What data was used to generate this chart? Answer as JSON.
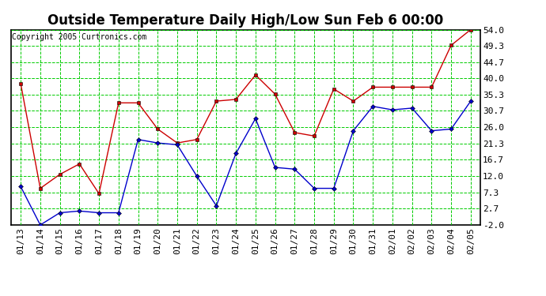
{
  "title": "Outside Temperature Daily High/Low Sun Feb 6 00:00",
  "copyright": "Copyright 2005 Curtronics.com",
  "x_labels": [
    "01/13",
    "01/14",
    "01/15",
    "01/16",
    "01/17",
    "01/18",
    "01/19",
    "01/20",
    "01/21",
    "01/22",
    "01/23",
    "01/24",
    "01/25",
    "01/26",
    "01/27",
    "01/28",
    "01/29",
    "01/30",
    "01/31",
    "02/01",
    "02/02",
    "02/03",
    "02/04",
    "02/05"
  ],
  "high_values": [
    38.5,
    8.5,
    12.5,
    15.5,
    7.0,
    33.0,
    33.0,
    25.5,
    21.5,
    22.5,
    33.5,
    34.0,
    41.0,
    35.5,
    24.5,
    23.5,
    37.0,
    33.5,
    37.5,
    37.5,
    37.5,
    37.5,
    49.5,
    54.0
  ],
  "low_values": [
    9.0,
    -2.0,
    1.5,
    2.0,
    1.5,
    1.5,
    22.5,
    21.5,
    21.0,
    12.0,
    3.5,
    18.5,
    28.5,
    14.5,
    14.0,
    8.5,
    8.5,
    25.0,
    32.0,
    31.0,
    31.5,
    25.0,
    25.5,
    33.5
  ],
  "high_color": "#cc0000",
  "low_color": "#0000cc",
  "bg_color": "#ffffff",
  "grid_color": "#00cc00",
  "yticks": [
    -2.0,
    2.7,
    7.3,
    12.0,
    16.7,
    21.3,
    26.0,
    30.7,
    35.3,
    40.0,
    44.7,
    49.3,
    54.0
  ],
  "ytick_labels": [
    "-2.0",
    "2.7",
    "7.3",
    "12.0",
    "16.7",
    "21.3",
    "26.0",
    "30.7",
    "35.3",
    "40.0",
    "44.7",
    "49.3",
    "54.0"
  ],
  "ymin": -2.0,
  "ymax": 54.0,
  "title_fontsize": 12,
  "axis_fontsize": 8,
  "copyright_fontsize": 7
}
